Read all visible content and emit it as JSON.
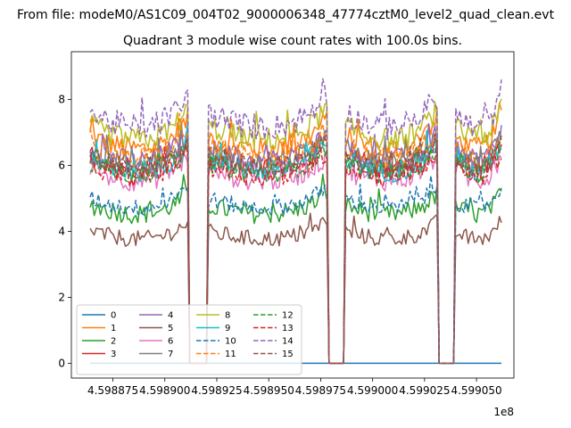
{
  "chart_data": {
    "type": "line",
    "suptitle": "From file: modeM0/AS1C09_004T02_9000006348_47774cztM0_level2_quad_clean.evt",
    "title": "Quadrant 3 module wise count rates with 100.0s bins.",
    "xlabel": "",
    "ylabel": "",
    "x_offset_label": "1e8",
    "x_tick_labels": [
      "4.598875",
      "4.598900",
      "4.598925",
      "4.598950",
      "4.598975",
      "4.599000",
      "4.599025",
      "4.599050"
    ],
    "y_tick_labels": [
      "0",
      "2",
      "4",
      "6",
      "8"
    ],
    "xlim": [
      459885500,
      459906800
    ],
    "ylim": [
      -0.45,
      9.45
    ],
    "grid": false,
    "legend": {
      "placement": "lower-left",
      "columns": 4,
      "entries": [
        "0",
        "1",
        "2",
        "3",
        "4",
        "5",
        "6",
        "7",
        "8",
        "9",
        "10",
        "11",
        "12",
        "13",
        "14",
        "15"
      ]
    },
    "x_range": [
      459886400,
      459906200
    ],
    "bin_seconds": 100.0,
    "segments_pattern": {
      "data_gaps": [
        [
          459891200,
          459892000
        ],
        [
          459897900,
          459898600
        ],
        [
          459903200,
          459903900
        ]
      ],
      "note": "count rates drop to 0 in three data gaps"
    },
    "series": [
      {
        "name": "0",
        "color": "#1f77b4",
        "style": "solid",
        "base": 0.0,
        "noise": 0.0
      },
      {
        "name": "1",
        "color": "#ff7f0e",
        "style": "solid",
        "base": 6.9,
        "noise": 0.35
      },
      {
        "name": "2",
        "color": "#2ca02c",
        "style": "solid",
        "base": 4.8,
        "noise": 0.3
      },
      {
        "name": "3",
        "color": "#d62728",
        "style": "solid",
        "base": 6.3,
        "noise": 0.35
      },
      {
        "name": "4",
        "color": "#9467bd",
        "style": "solid",
        "base": 6.5,
        "noise": 0.35
      },
      {
        "name": "5",
        "color": "#8c564b",
        "style": "solid",
        "base": 4.0,
        "noise": 0.25
      },
      {
        "name": "6",
        "color": "#e377c2",
        "style": "solid",
        "base": 5.9,
        "noise": 0.35
      },
      {
        "name": "7",
        "color": "#7f7f7f",
        "style": "solid",
        "base": 6.4,
        "noise": 0.35
      },
      {
        "name": "8",
        "color": "#bcbd22",
        "style": "solid",
        "base": 7.2,
        "noise": 0.35
      },
      {
        "name": "9",
        "color": "#17becf",
        "style": "solid",
        "base": 6.2,
        "noise": 0.35
      },
      {
        "name": "10",
        "color": "#1f77b4",
        "style": "dashed",
        "base": 5.0,
        "noise": 0.25
      },
      {
        "name": "11",
        "color": "#ff7f0e",
        "style": "dashed",
        "base": 6.6,
        "noise": 0.35
      },
      {
        "name": "12",
        "color": "#2ca02c",
        "style": "dashed",
        "base": 6.1,
        "noise": 0.3
      },
      {
        "name": "13",
        "color": "#d62728",
        "style": "dashed",
        "base": 6.0,
        "noise": 0.3
      },
      {
        "name": "14",
        "color": "#9467bd",
        "style": "dashed",
        "base": 7.6,
        "noise": 0.4
      },
      {
        "name": "15",
        "color": "#8c564b",
        "style": "dashed",
        "base": 6.3,
        "noise": 0.3
      }
    ]
  }
}
